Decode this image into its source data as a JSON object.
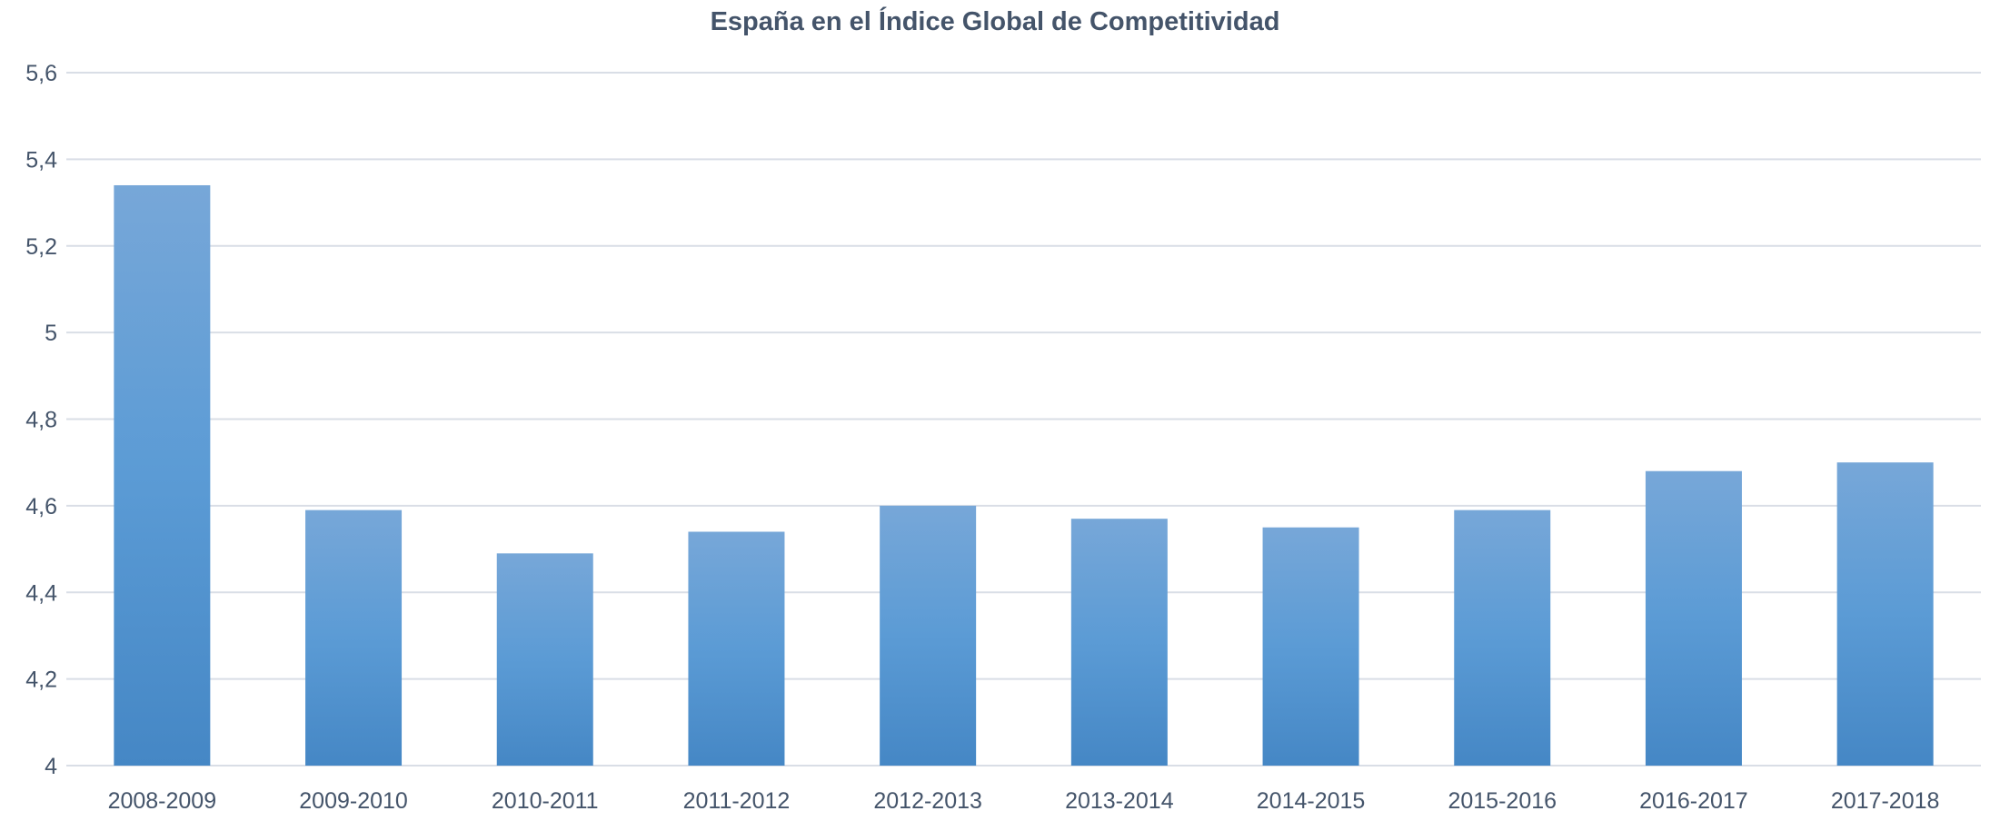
{
  "chart_data": {
    "type": "bar",
    "title": "España en el Índice Global de Competitividad",
    "xlabel": "",
    "ylabel": "",
    "categories": [
      "2008-2009",
      "2009-2010",
      "2010-2011",
      "2011-2012",
      "2012-2013",
      "2013-2014",
      "2014-2015",
      "2015-2016",
      "2016-2017",
      "2017-2018"
    ],
    "values": [
      5.34,
      4.59,
      4.49,
      4.54,
      4.6,
      4.57,
      4.55,
      4.59,
      4.68,
      4.7
    ],
    "ylim": [
      4,
      5.6
    ],
    "yticks": [
      4,
      4.2,
      4.4,
      4.6,
      4.8,
      5,
      5.2,
      5.4,
      5.6
    ],
    "ytick_labels": [
      "4",
      "4,2",
      "4,4",
      "4,6",
      "4,8",
      "5",
      "5,2",
      "5,4",
      "5,6"
    ],
    "grid": true,
    "legend": "none",
    "colors": {
      "bar_top": "#77a7d8",
      "bar_mid": "#5b9bd5",
      "bar_bottom": "#4587c5",
      "grid": "#d9dee6",
      "text": "#44546a"
    }
  }
}
